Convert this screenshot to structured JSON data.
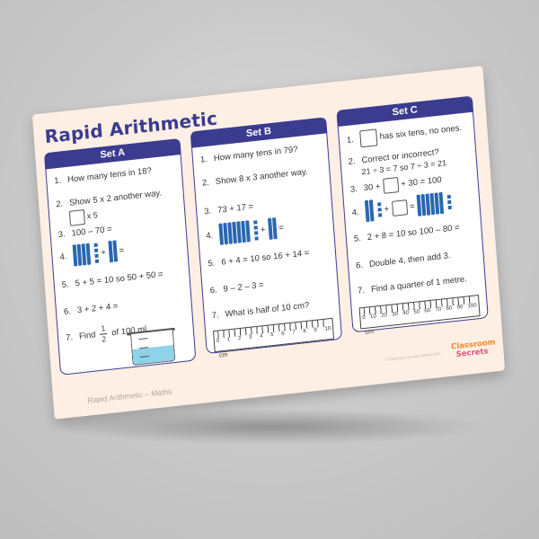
{
  "title": "Rapid Arithmetic",
  "footer": "Rapid Arithmetic – Maths",
  "copyright": "© Classroom Secrets Limited 2021",
  "logo": {
    "line1": "Classroom",
    "line2": "Secrets"
  },
  "colors": {
    "header": "#3b3b8f",
    "sheet": "#fdefe4",
    "blocks": "#2a67b2",
    "water": "#8fd3e8"
  },
  "sets": [
    {
      "name": "Set A",
      "questions": [
        {
          "num": "1.",
          "text": "How many tens in 18?"
        },
        {
          "num": "2.",
          "text": "Show 5 x 2 another way.",
          "sub": "x 5"
        },
        {
          "num": "3.",
          "text": "100 – 70 ="
        },
        {
          "num": "4.",
          "plus": "+",
          "eq": "="
        },
        {
          "num": "5.",
          "text": "5 + 5 = 10 so 50 + 50 ="
        },
        {
          "num": "6.",
          "text": "3 + 2 + 4 ="
        },
        {
          "num": "7.",
          "pre": "Find",
          "frac_n": "1",
          "frac_d": "2",
          "post": "of 100 ml."
        }
      ]
    },
    {
      "name": "Set B",
      "questions": [
        {
          "num": "1.",
          "text": "How many tens in 79?"
        },
        {
          "num": "2.",
          "text": "Show 8 x 3 another way."
        },
        {
          "num": "3.",
          "text": "73 + 17 ="
        },
        {
          "num": "4.",
          "plus": "+",
          "eq": "="
        },
        {
          "num": "5.",
          "text": "6 + 4 = 10 so 16 + 14 ="
        },
        {
          "num": "6.",
          "text": "9 – 2 – 3 ="
        },
        {
          "num": "7.",
          "text": "What is half of 10 cm?"
        }
      ],
      "ruler": {
        "labels": [
          "0",
          "1",
          "2",
          "3",
          "4",
          "5",
          "6",
          "7",
          "8",
          "9",
          "10"
        ],
        "unit": "cm"
      }
    },
    {
      "name": "Set C",
      "questions": [
        {
          "num": "1.",
          "text": "has six tens, no ones."
        },
        {
          "num": "2.",
          "text": "Correct or incorrect?",
          "sub": "21 ÷ 3 = 7 so 7 ÷ 3 = 21"
        },
        {
          "num": "3.",
          "pre": "30 +",
          "post": "+ 30 = 100"
        },
        {
          "num": "4.",
          "plus": "+",
          "eq": "="
        },
        {
          "num": "5.",
          "text": "2 + 8 = 10 so 100 – 80 ="
        },
        {
          "num": "6.",
          "text": "Double 4, then add 3."
        },
        {
          "num": "7.",
          "text": "Find a quarter of 1 metre."
        }
      ],
      "ruler": {
        "labels": [
          "0",
          "10",
          "20",
          "30",
          "40",
          "50",
          "60",
          "70",
          "80",
          "90",
          "100"
        ],
        "unit": "cm"
      }
    }
  ]
}
